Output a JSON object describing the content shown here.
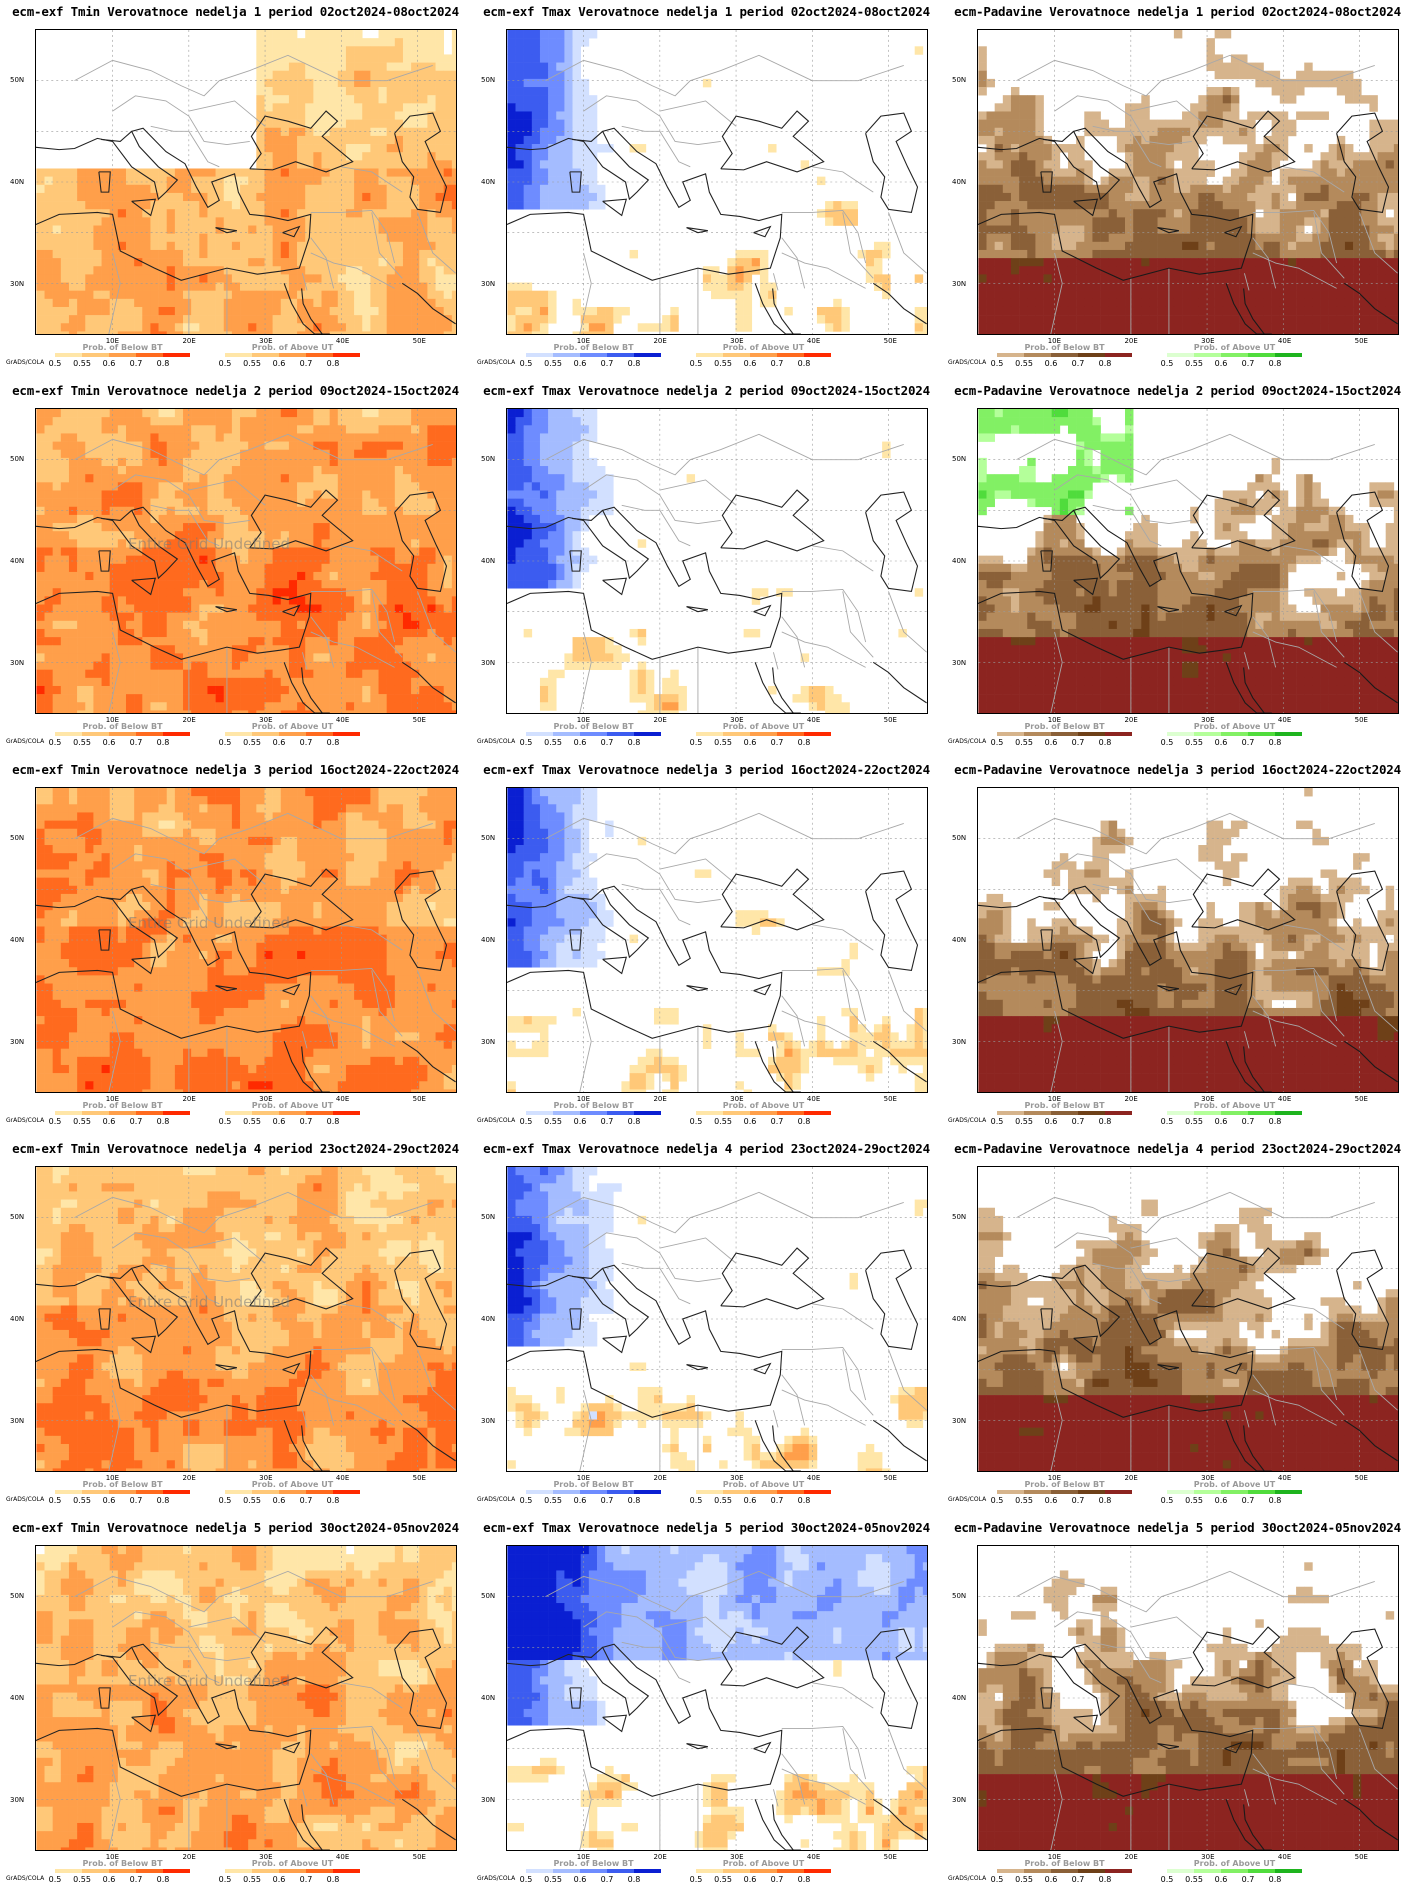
{
  "map_labels": {
    "lat": [
      "50N",
      "40N",
      "30N"
    ],
    "lon": [
      "10E",
      "20E",
      "30E",
      "40E",
      "50E"
    ],
    "credit": "GrADS/COLA",
    "undefined_text": "Entire Grid Undefined"
  },
  "legend_ticks": [
    "0.5",
    "0.55",
    "0.6",
    "0.7",
    "0.8"
  ],
  "legends": {
    "below": "Prob. of Below BT",
    "above": "Prob. of Above UT"
  },
  "colors": {
    "warm": [
      "#ffe6a8",
      "#ffc878",
      "#ff9f4a",
      "#ff6a1e",
      "#ff2a00"
    ],
    "cool": [
      "#d2e0ff",
      "#a4bcff",
      "#6e8cff",
      "#3c5cf0",
      "#0a1fd2"
    ],
    "dry": [
      "#d6b48c",
      "#b48a5c",
      "#8a6038",
      "#6e4018",
      "#8c2420"
    ],
    "wet": [
      "#dcffd0",
      "#b4ff9a",
      "#82f064",
      "#50dc3c",
      "#1eb41e"
    ]
  },
  "panels": [
    {
      "title": "ecm-exf Tmin Verovatnoce nedelja 1 period 02oct2024-08oct2024",
      "var": "tmin",
      "week": 1,
      "level": 0.55,
      "undefined": false
    },
    {
      "title": "ecm-exf Tmax Verovatnoce nedelja 1 period 02oct2024-08oct2024",
      "var": "tmax",
      "week": 1,
      "level": 0.3,
      "undefined": false
    },
    {
      "title": "ecm-Padavine Verovatnoce nedelja 1 period 02oct2024-08oct2024",
      "var": "prec",
      "week": 1,
      "level": 0.8,
      "undefined": false
    },
    {
      "title": "ecm-exf Tmin Verovatnoce nedelja 2 period 09oct2024-15oct2024",
      "var": "tmin",
      "week": 2,
      "level": 0.85,
      "undefined": true
    },
    {
      "title": "ecm-exf Tmax Verovatnoce nedelja 2 period 09oct2024-15oct2024",
      "var": "tmax",
      "week": 2,
      "level": 0.3,
      "undefined": false
    },
    {
      "title": "ecm-Padavine Verovatnoce nedelja 2 period 09oct2024-15oct2024",
      "var": "prec",
      "week": 2,
      "level": 0.7,
      "undefined": false
    },
    {
      "title": "ecm-exf Tmin Verovatnoce nedelja 3 period 16oct2024-22oct2024",
      "var": "tmin",
      "week": 3,
      "level": 0.85,
      "undefined": true
    },
    {
      "title": "ecm-exf Tmax Verovatnoce nedelja 3 period 16oct2024-22oct2024",
      "var": "tmax",
      "week": 3,
      "level": 0.25,
      "undefined": false
    },
    {
      "title": "ecm-Padavine Verovatnoce nedelja 3 period 16oct2024-22oct2024",
      "var": "prec",
      "week": 3,
      "level": 0.75,
      "undefined": false
    },
    {
      "title": "ecm-exf Tmin Verovatnoce nedelja 4 period 23oct2024-29oct2024",
      "var": "tmin",
      "week": 4,
      "level": 0.7,
      "undefined": true
    },
    {
      "title": "ecm-exf Tmax Verovatnoce nedelja 4 period 23oct2024-29oct2024",
      "var": "tmax",
      "week": 4,
      "level": 0.15,
      "undefined": false
    },
    {
      "title": "ecm-Padavine Verovatnoce nedelja 4 period 23oct2024-29oct2024",
      "var": "prec",
      "week": 4,
      "level": 0.75,
      "undefined": false
    },
    {
      "title": "ecm-exf Tmin Verovatnoce nedelja 5 period 30oct2024-05nov2024",
      "var": "tmin",
      "week": 5,
      "level": 0.6,
      "undefined": true
    },
    {
      "title": "ecm-exf Tmax Verovatnoce nedelja 5 period 30oct2024-05nov2024",
      "var": "tmax",
      "week": 5,
      "level": 0.25,
      "undefined": false
    },
    {
      "title": "ecm-Padavine Verovatnoce nedelja 5 period 30oct2024-05nov2024",
      "var": "prec",
      "week": 5,
      "level": 0.7,
      "undefined": false
    }
  ]
}
